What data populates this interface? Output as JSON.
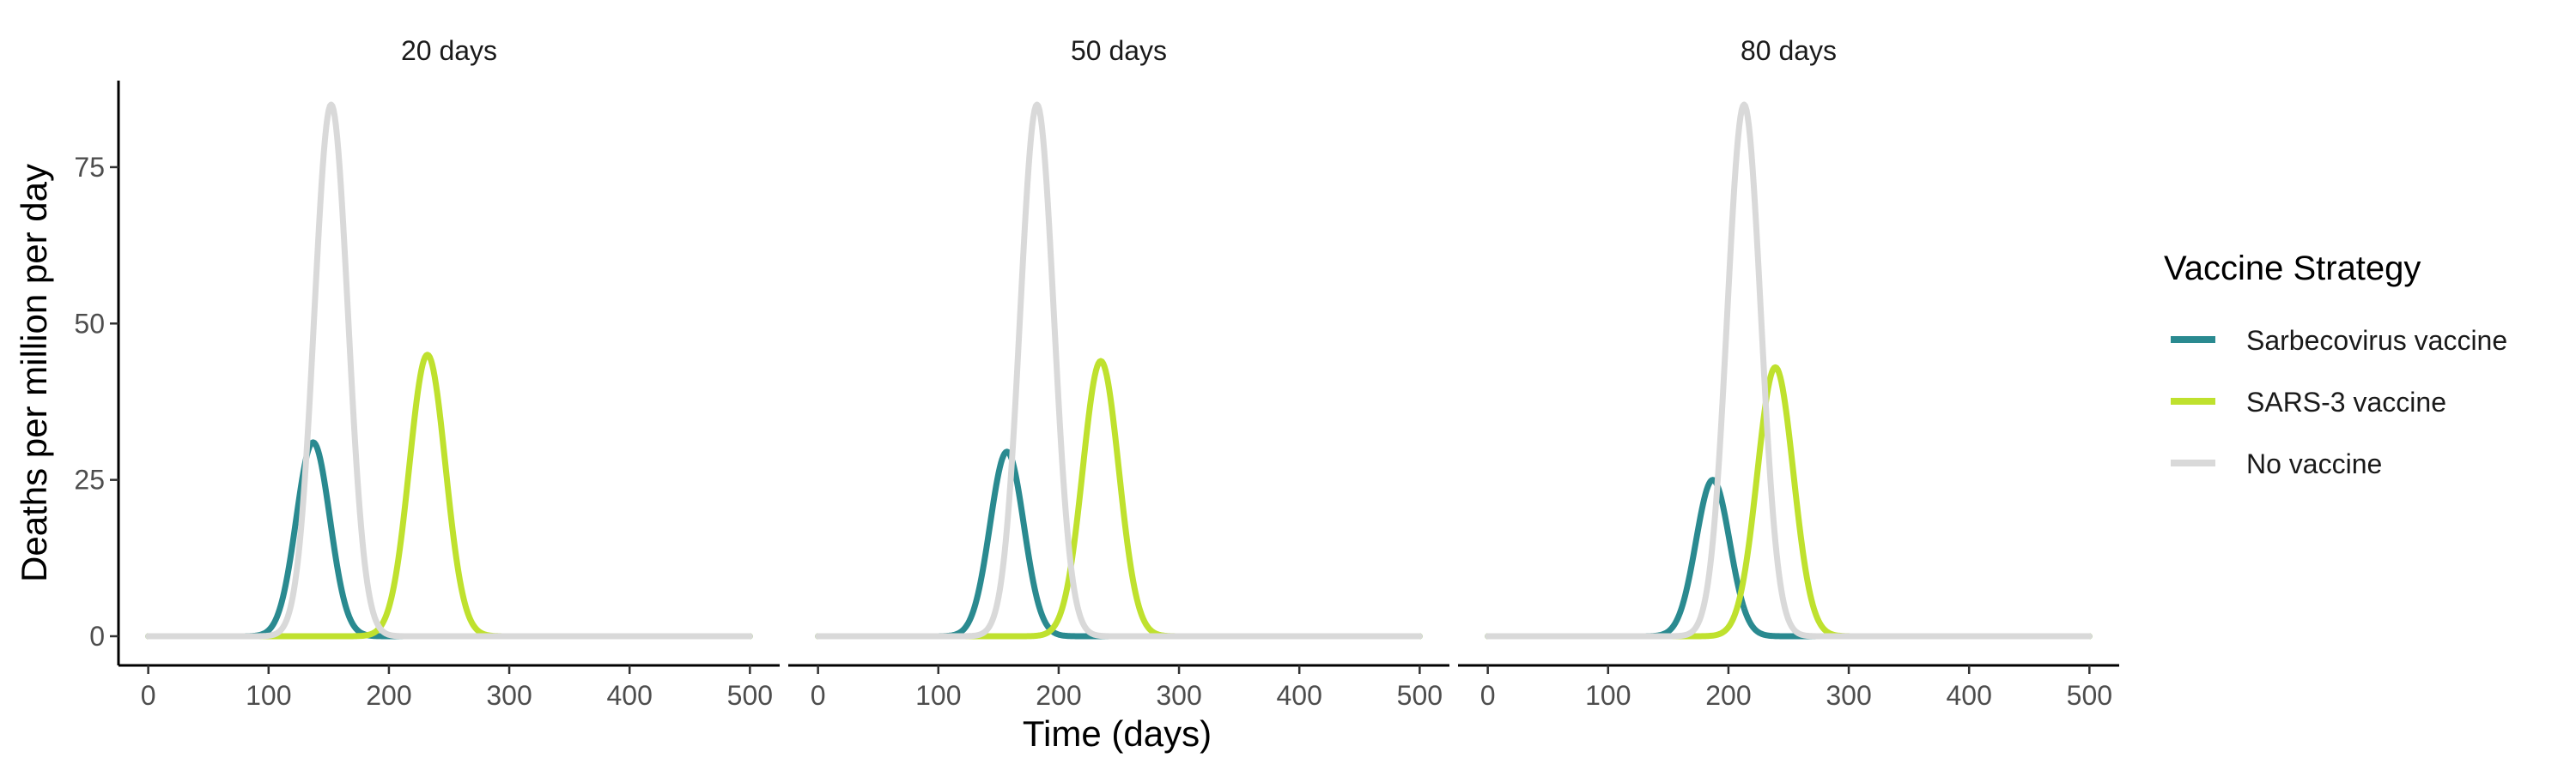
{
  "chart_data": {
    "type": "line",
    "facet_titles": [
      "20 days",
      "50 days",
      "80 days"
    ],
    "xlabel": "Time (days)",
    "ylabel": "Deaths per million per day",
    "xlim": [
      0,
      500
    ],
    "ylim": [
      0,
      85
    ],
    "x_ticks": [
      0,
      100,
      200,
      300,
      400,
      500
    ],
    "y_ticks": [
      0,
      25,
      50,
      75
    ],
    "grid": false,
    "legend": {
      "title": "Vaccine Strategy",
      "position": "right",
      "items": [
        {
          "name": "Sarbecovirus vaccine",
          "color": "#2a8a90"
        },
        {
          "name": "SARS-3 vaccine",
          "color": "#bfe12e"
        },
        {
          "name": "No vaccine",
          "color": "#d9d9d9"
        }
      ]
    },
    "panels": [
      {
        "title": "20 days",
        "series": [
          {
            "name": "No vaccine",
            "peak_time": 152,
            "peak_value": 85,
            "width_days": 14
          },
          {
            "name": "Sarbecovirus vaccine",
            "peak_time": 137,
            "peak_value": 31,
            "width_days": 14
          },
          {
            "name": "SARS-3 vaccine",
            "peak_time": 232,
            "peak_value": 45,
            "width_days": 15
          }
        ]
      },
      {
        "title": "50 days",
        "series": [
          {
            "name": "No vaccine",
            "peak_time": 182,
            "peak_value": 85,
            "width_days": 14
          },
          {
            "name": "Sarbecovirus vaccine",
            "peak_time": 157,
            "peak_value": 29.5,
            "width_days": 14
          },
          {
            "name": "SARS-3 vaccine",
            "peak_time": 235,
            "peak_value": 44,
            "width_days": 15
          }
        ]
      },
      {
        "title": "80 days",
        "series": [
          {
            "name": "No vaccine",
            "peak_time": 213,
            "peak_value": 85,
            "width_days": 14
          },
          {
            "name": "Sarbecovirus vaccine",
            "peak_time": 187,
            "peak_value": 25,
            "width_days": 14
          },
          {
            "name": "SARS-3 vaccine",
            "peak_time": 239,
            "peak_value": 43,
            "width_days": 15
          }
        ]
      }
    ]
  }
}
